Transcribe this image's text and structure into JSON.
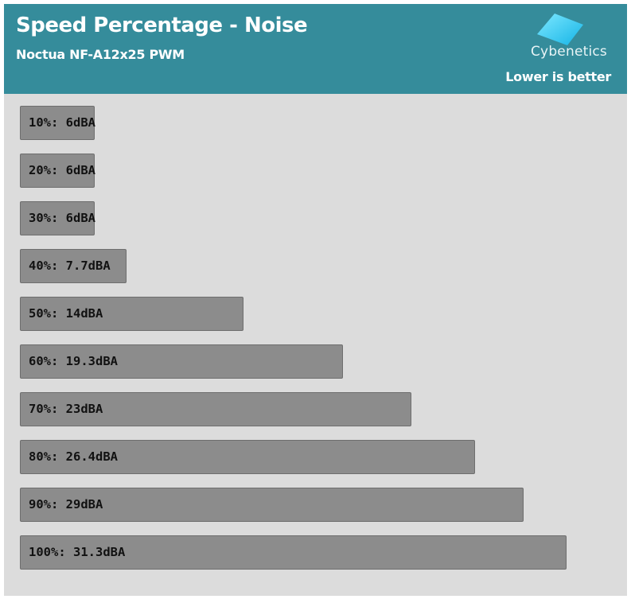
{
  "header": {
    "title": "Speed Percentage - Noise",
    "subtitle": "Noctua NF-A12x25 PWM",
    "note": "Lower is better",
    "logo_text": "Cybenetics",
    "background_color": "#358c9b"
  },
  "colors": {
    "bar": "#8c8c8c",
    "plot_background": "#dcdcdc",
    "label_text": "#111111"
  },
  "chart_data": {
    "type": "bar",
    "orientation": "horizontal",
    "title": "Speed Percentage - Noise",
    "subtitle": "Noctua NF-A12x25 PWM",
    "annotation": "Lower is better",
    "unit": "dBA",
    "categories": [
      "10%",
      "20%",
      "30%",
      "40%",
      "50%",
      "60%",
      "70%",
      "80%",
      "90%",
      "100%"
    ],
    "values": [
      6,
      6,
      6,
      7.7,
      14,
      19.3,
      23,
      26.4,
      29,
      31.3
    ],
    "labels": [
      "10%: 6dBA",
      "20%: 6dBA",
      "30%: 6dBA",
      "40%: 7.7dBA",
      "50%: 14dBA",
      "60%: 19.3dBA",
      "70%: 23dBA",
      "80%: 26.4dBA",
      "90%: 29dBA",
      "100%: 31.3dBA"
    ],
    "xlim": [
      2,
      33
    ],
    "grid": false,
    "legend": "none"
  }
}
